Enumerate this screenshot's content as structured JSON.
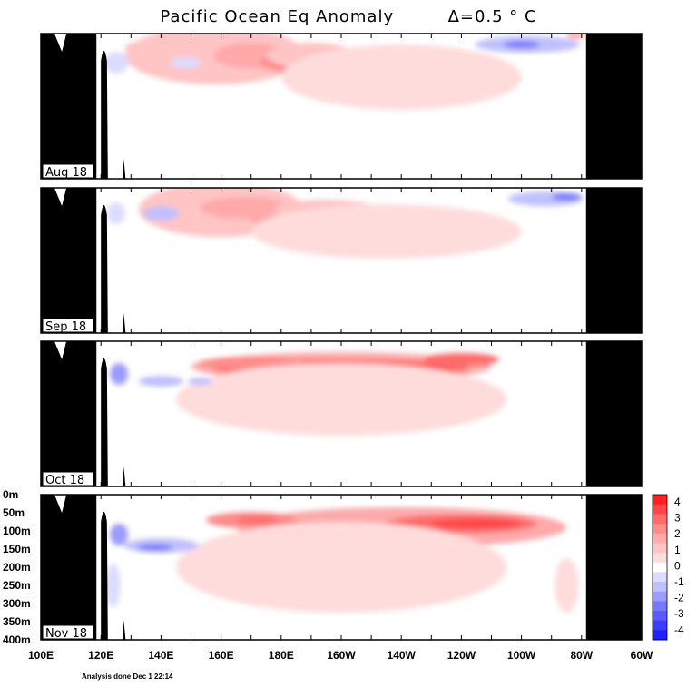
{
  "title": "Pacific Ocean Eq Anomaly",
  "title_delta": "Δ=0.5 ° C",
  "footnote": "Analysis done Dec 1 22:14",
  "chart_data": {
    "type": "heatmap",
    "title": "Pacific Ocean Eq Anomaly  Δ=0.5 ° C",
    "x_ticks": [
      "100E",
      "120E",
      "140E",
      "160E",
      "180E",
      "160W",
      "140W",
      "120W",
      "100W",
      "80W",
      "60W"
    ],
    "x_tick_lon": [
      100,
      120,
      140,
      160,
      180,
      200,
      220,
      240,
      260,
      280,
      300
    ],
    "y_ticks": [
      "0m",
      "50m",
      "100m",
      "150m",
      "200m",
      "250m",
      "300m",
      "350m",
      "400m"
    ],
    "y_tick_depth": [
      0,
      50,
      100,
      150,
      200,
      250,
      300,
      350,
      400
    ],
    "xlim": [
      100,
      300
    ],
    "ylim": [
      0,
      400
    ],
    "colorbar": {
      "labels": [
        "4",
        "3",
        "2",
        "1",
        "0",
        "-1",
        "-2",
        "-3",
        "-4"
      ],
      "levels": [
        4,
        3.5,
        3,
        2.5,
        2,
        1.5,
        1,
        0.5,
        -0.5,
        -1,
        -1.5,
        -2,
        -2.5,
        -3,
        -3.5,
        -4
      ],
      "colors": [
        "#ff2020",
        "#ff4545",
        "#ff6a6a",
        "#ff8c8c",
        "#ffa9a9",
        "#ffc4c4",
        "#ffdcdc",
        "#ffffff",
        "#dcdcff",
        "#c0c0ff",
        "#9c9cff",
        "#7878ff",
        "#5a5aff",
        "#3c3cff",
        "#2020ff"
      ]
    },
    "panels": [
      {
        "label": "Aug 18",
        "anomalies": [
          {
            "lon": 158,
            "depth": 60,
            "width": 60,
            "height": 160,
            "value": 1.0
          },
          {
            "lon": 170,
            "depth": 60,
            "width": 25,
            "height": 70,
            "value": 1.5
          },
          {
            "lon": 182,
            "depth": 80,
            "width": 18,
            "height": 50,
            "value": 2.0
          },
          {
            "lon": 190,
            "depth": 60,
            "width": 30,
            "height": 70,
            "value": 1.0
          },
          {
            "lon": 134,
            "depth": 40,
            "width": 12,
            "height": 40,
            "value": 1.0
          },
          {
            "lon": 125,
            "depth": 80,
            "width": 8,
            "height": 60,
            "value": -0.8
          },
          {
            "lon": 148,
            "depth": 80,
            "width": 10,
            "height": 30,
            "value": -0.8
          },
          {
            "lon": 262,
            "depth": 30,
            "width": 35,
            "height": 45,
            "value": -1.0
          },
          {
            "lon": 260,
            "depth": 30,
            "width": 12,
            "height": 20,
            "value": -2.0
          },
          {
            "lon": 220,
            "depth": 120,
            "width": 80,
            "height": 180,
            "value": 0.8
          },
          {
            "lon": 278,
            "depth": 5,
            "width": 6,
            "height": 20,
            "value": 1.5
          }
        ]
      },
      {
        "label": "Sep 18",
        "anomalies": [
          {
            "lon": 160,
            "depth": 60,
            "width": 55,
            "height": 150,
            "value": 1.0
          },
          {
            "lon": 168,
            "depth": 55,
            "width": 30,
            "height": 60,
            "value": 1.5
          },
          {
            "lon": 195,
            "depth": 60,
            "width": 35,
            "height": 55,
            "value": 1.0
          },
          {
            "lon": 175,
            "depth": 90,
            "width": 10,
            "height": 40,
            "value": 1.5
          },
          {
            "lon": 140,
            "depth": 70,
            "width": 12,
            "height": 40,
            "value": -1.0
          },
          {
            "lon": 125,
            "depth": 70,
            "width": 6,
            "height": 60,
            "value": -0.8
          },
          {
            "lon": 268,
            "depth": 30,
            "width": 25,
            "height": 40,
            "value": -1.0
          },
          {
            "lon": 275,
            "depth": 25,
            "width": 10,
            "height": 20,
            "value": -2.0
          },
          {
            "lon": 215,
            "depth": 120,
            "width": 90,
            "height": 150,
            "value": 0.8
          }
        ]
      },
      {
        "label": "Oct 18",
        "anomalies": [
          {
            "lon": 200,
            "depth": 70,
            "width": 100,
            "height": 80,
            "value": 1.5
          },
          {
            "lon": 200,
            "depth": 75,
            "width": 85,
            "height": 50,
            "value": 2.5
          },
          {
            "lon": 210,
            "depth": 80,
            "width": 55,
            "height": 30,
            "value": 3.0
          },
          {
            "lon": 222,
            "depth": 85,
            "width": 12,
            "height": 18,
            "value": 3.5
          },
          {
            "lon": 170,
            "depth": 60,
            "width": 35,
            "height": 35,
            "value": 2.0
          },
          {
            "lon": 240,
            "depth": 50,
            "width": 25,
            "height": 35,
            "value": 2.5
          },
          {
            "lon": 200,
            "depth": 160,
            "width": 110,
            "height": 200,
            "value": 0.8
          },
          {
            "lon": 126,
            "depth": 90,
            "width": 6,
            "height": 60,
            "value": -1.5
          },
          {
            "lon": 140,
            "depth": 110,
            "width": 15,
            "height": 30,
            "value": -1.0
          },
          {
            "lon": 153,
            "depth": 110,
            "width": 8,
            "height": 20,
            "value": -1.0
          }
        ]
      },
      {
        "label": "Nov 18",
        "anomalies": [
          {
            "lon": 220,
            "depth": 90,
            "width": 110,
            "height": 110,
            "value": 1.5
          },
          {
            "lon": 240,
            "depth": 80,
            "width": 50,
            "height": 50,
            "value": 2.5
          },
          {
            "lon": 245,
            "depth": 80,
            "width": 30,
            "height": 25,
            "value": 3.0
          },
          {
            "lon": 170,
            "depth": 70,
            "width": 30,
            "height": 45,
            "value": 2.0
          },
          {
            "lon": 172,
            "depth": 70,
            "width": 14,
            "height": 20,
            "value": 2.5
          },
          {
            "lon": 190,
            "depth": 140,
            "width": 30,
            "height": 25,
            "value": 1.5
          },
          {
            "lon": 200,
            "depth": 200,
            "width": 110,
            "height": 250,
            "value": 0.8
          },
          {
            "lon": 140,
            "depth": 140,
            "width": 25,
            "height": 40,
            "value": -1.0
          },
          {
            "lon": 138,
            "depth": 145,
            "width": 12,
            "height": 18,
            "value": -2.0
          },
          {
            "lon": 126,
            "depth": 110,
            "width": 6,
            "height": 60,
            "value": -1.5
          },
          {
            "lon": 124,
            "depth": 250,
            "width": 5,
            "height": 120,
            "value": -0.8
          },
          {
            "lon": 275,
            "depth": 250,
            "width": 8,
            "height": 150,
            "value": 0.8
          }
        ]
      }
    ]
  }
}
